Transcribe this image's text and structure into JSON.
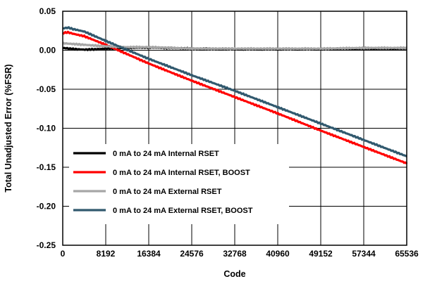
{
  "chart_data": {
    "type": "line",
    "title": "",
    "xlabel": "Code",
    "ylabel": "Total Unadjusted Error (%FSR)",
    "xlim": [
      0,
      65536
    ],
    "ylim": [
      -0.25,
      0.05
    ],
    "xticks": [
      0,
      8192,
      16384,
      24576,
      32768,
      40960,
      49152,
      57344,
      65536
    ],
    "xtick_labels": [
      "0",
      "8192",
      "16384",
      "24576",
      "32768",
      "40960",
      "49152",
      "57344",
      "65536"
    ],
    "yticks": [
      0.05,
      0.0,
      -0.05,
      -0.1,
      -0.15,
      -0.2,
      -0.25
    ],
    "ytick_labels": [
      "0.05",
      "0.00",
      "-0.05",
      "-0.10",
      "-0.15",
      "-0.20",
      "-0.25"
    ],
    "grid": true,
    "legend_position": "bottom-left",
    "series": [
      {
        "name": "0 mA to 24 mA Internal RSET",
        "color": "#000000",
        "x": [
          0,
          2048,
          4096,
          6144,
          8192,
          12288,
          16384,
          24576,
          32768,
          40960,
          49152,
          57344,
          65536
        ],
        "y": [
          0.003,
          0.0015,
          0.0008,
          0.0012,
          0.002,
          0.003,
          0.0035,
          0.002,
          0.0015,
          0.0015,
          0.0015,
          0.002,
          0.002
        ]
      },
      {
        "name": "0 mA to 24 mA Internal RSET, BOOST",
        "color": "#ff0000",
        "x": [
          0,
          1024,
          2048,
          4096,
          8192,
          16384,
          24576,
          32768,
          40960,
          49152,
          57344,
          65536
        ],
        "y": [
          0.022,
          0.023,
          0.021,
          0.018,
          0.007,
          -0.017,
          -0.039,
          -0.06,
          -0.081,
          -0.103,
          -0.124,
          -0.145
        ]
      },
      {
        "name": "0 mA to 24 mA External RSET",
        "color": "#a6a6a6",
        "x": [
          0,
          4096,
          8192,
          12288,
          16384,
          20480,
          24576,
          32768,
          40960,
          49152,
          57344,
          65536
        ],
        "y": [
          0.009,
          0.007,
          0.005,
          0.004,
          0.004,
          0.003,
          0.002,
          0.002,
          0.002,
          0.002,
          0.003,
          0.003
        ]
      },
      {
        "name": "0 mA to 24 mA External RSET, BOOST",
        "color": "#31596e",
        "x": [
          0,
          1024,
          2048,
          4096,
          8192,
          16384,
          24576,
          32768,
          40960,
          49152,
          57344,
          65536
        ],
        "y": [
          0.028,
          0.029,
          0.027,
          0.024,
          0.012,
          -0.011,
          -0.032,
          -0.052,
          -0.073,
          -0.094,
          -0.115,
          -0.136
        ]
      }
    ]
  }
}
